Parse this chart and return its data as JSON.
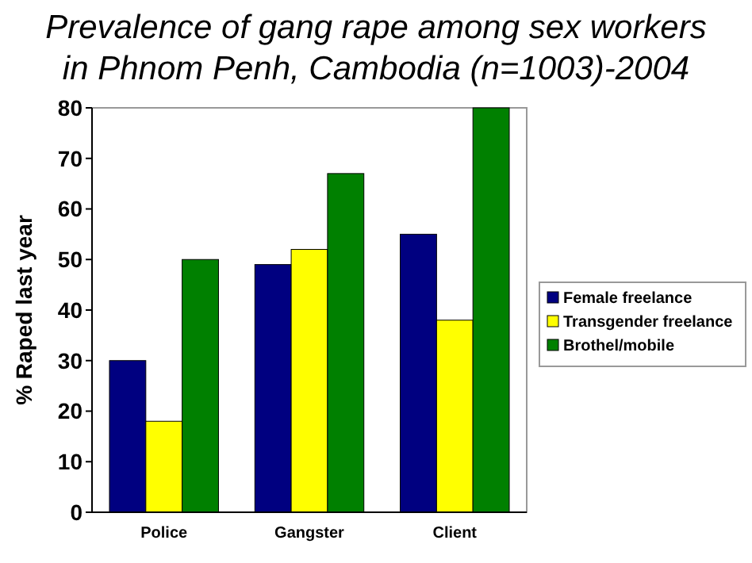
{
  "chart_data": {
    "type": "bar",
    "title": "Prevalence of gang rape among sex workers in Phnom Penh, Cambodia (n=1003)-2004",
    "ylabel": "% Raped last year",
    "categories": [
      "Police",
      "Gangster",
      "Client"
    ],
    "series": [
      {
        "name": "Female freelance",
        "color": "#000080",
        "values": [
          30,
          49,
          55
        ]
      },
      {
        "name": "Transgender freelance",
        "color": "#ffff00",
        "values": [
          18,
          52,
          38
        ]
      },
      {
        "name": "Brothel/mobile",
        "color": "#008000",
        "values": [
          50,
          67,
          80
        ]
      }
    ],
    "ylim": [
      0,
      80
    ],
    "yticks": [
      0,
      10,
      20,
      30,
      40,
      50,
      60,
      70,
      80
    ],
    "grid": false,
    "legend": "right"
  }
}
